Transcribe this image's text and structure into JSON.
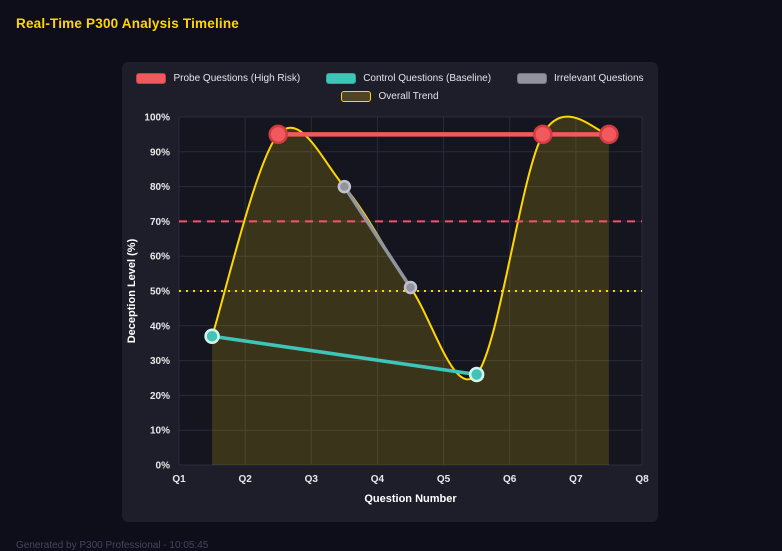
{
  "title": "Real-Time P300 Analysis Timeline",
  "footer": "Generated by P300 Professional - 10:05:45",
  "legend": [
    {
      "label": "Probe Questions (High Risk)",
      "fill": "#f2595c",
      "border": "#d23b44",
      "row": 1
    },
    {
      "label": "Control Questions (Baseline)",
      "fill": "#3fc5b7",
      "border": "#2aa99d",
      "row": 1
    },
    {
      "label": "Irrelevant Questions",
      "fill": "#93939f",
      "border": "#74747f",
      "row": 1
    },
    {
      "label": "Overall Trend",
      "fill": "rgba(255,215,0,0.22)",
      "border": "#ffd700",
      "row": 2
    }
  ],
  "chart_data": {
    "type": "line",
    "title": "Real-Time P300 Analysis Timeline",
    "xlabel": "Question Number",
    "ylabel": "Deception Level (%)",
    "x_tick_labels": [
      "Q1",
      "Q2",
      "Q3",
      "Q4",
      "Q5",
      "Q6",
      "Q7",
      "Q8"
    ],
    "x_tick_values": [
      1,
      2,
      3,
      4,
      5,
      6,
      7,
      8
    ],
    "xlim": [
      1,
      8
    ],
    "ylim": [
      0,
      100
    ],
    "y_tick_labels": [
      "0%",
      "10%",
      "20%",
      "30%",
      "40%",
      "50%",
      "60%",
      "70%",
      "80%",
      "90%",
      "100%"
    ],
    "y_tick_values": [
      0,
      10,
      20,
      30,
      40,
      50,
      60,
      70,
      80,
      90,
      100
    ],
    "grid": true,
    "legend_position": "top",
    "series": [
      {
        "name": "Probe Questions (High Risk)",
        "key": "probe",
        "color": "#f2595c",
        "marker_stroke": "#d23b44",
        "line_width": 4.5,
        "marker_r": 8.5,
        "points": [
          {
            "x": 2.5,
            "y": 95
          },
          {
            "x": 6.5,
            "y": 95
          },
          {
            "x": 7.5,
            "y": 95
          }
        ]
      },
      {
        "name": "Control Questions (Baseline)",
        "key": "control",
        "color": "#3fc5b7",
        "marker_stroke": "#d6f3ef",
        "line_width": 3.5,
        "marker_r": 6.5,
        "points": [
          {
            "x": 1.5,
            "y": 37
          },
          {
            "x": 5.5,
            "y": 26
          }
        ]
      },
      {
        "name": "Irrelevant Questions",
        "key": "irrelevant",
        "color": "#93939f",
        "marker_stroke": "#c2c2cc",
        "line_width": 3.5,
        "marker_r": 5.5,
        "points": [
          {
            "x": 3.5,
            "y": 80
          },
          {
            "x": 4.5,
            "y": 51
          }
        ]
      }
    ],
    "trend": {
      "name": "Overall Trend",
      "color": "#ffd700",
      "area_fill": "rgba(255,215,0,0.16)",
      "line_width": 2,
      "points": [
        {
          "x": 1.5,
          "y": 37
        },
        {
          "x": 2.5,
          "y": 95
        },
        {
          "x": 3.5,
          "y": 80
        },
        {
          "x": 4.5,
          "y": 51
        },
        {
          "x": 5.5,
          "y": 26
        },
        {
          "x": 6.5,
          "y": 95
        },
        {
          "x": 7.5,
          "y": 95
        }
      ]
    },
    "thresholds": [
      {
        "y": 70,
        "color": "#ff4d6d",
        "dash": "8 6",
        "width": 2
      },
      {
        "y": 50,
        "color": "#ffd700",
        "dash": "2 5",
        "width": 2
      }
    ]
  },
  "colors": {
    "page_bg": "#0e0e1a",
    "panel_bg": "#1e1e2b",
    "plot_bg": "#15151f",
    "grid": "#2a2a3a",
    "tick_text": "#e8e8ea",
    "axis_title": "#ffffff",
    "title": "#ffd700"
  }
}
